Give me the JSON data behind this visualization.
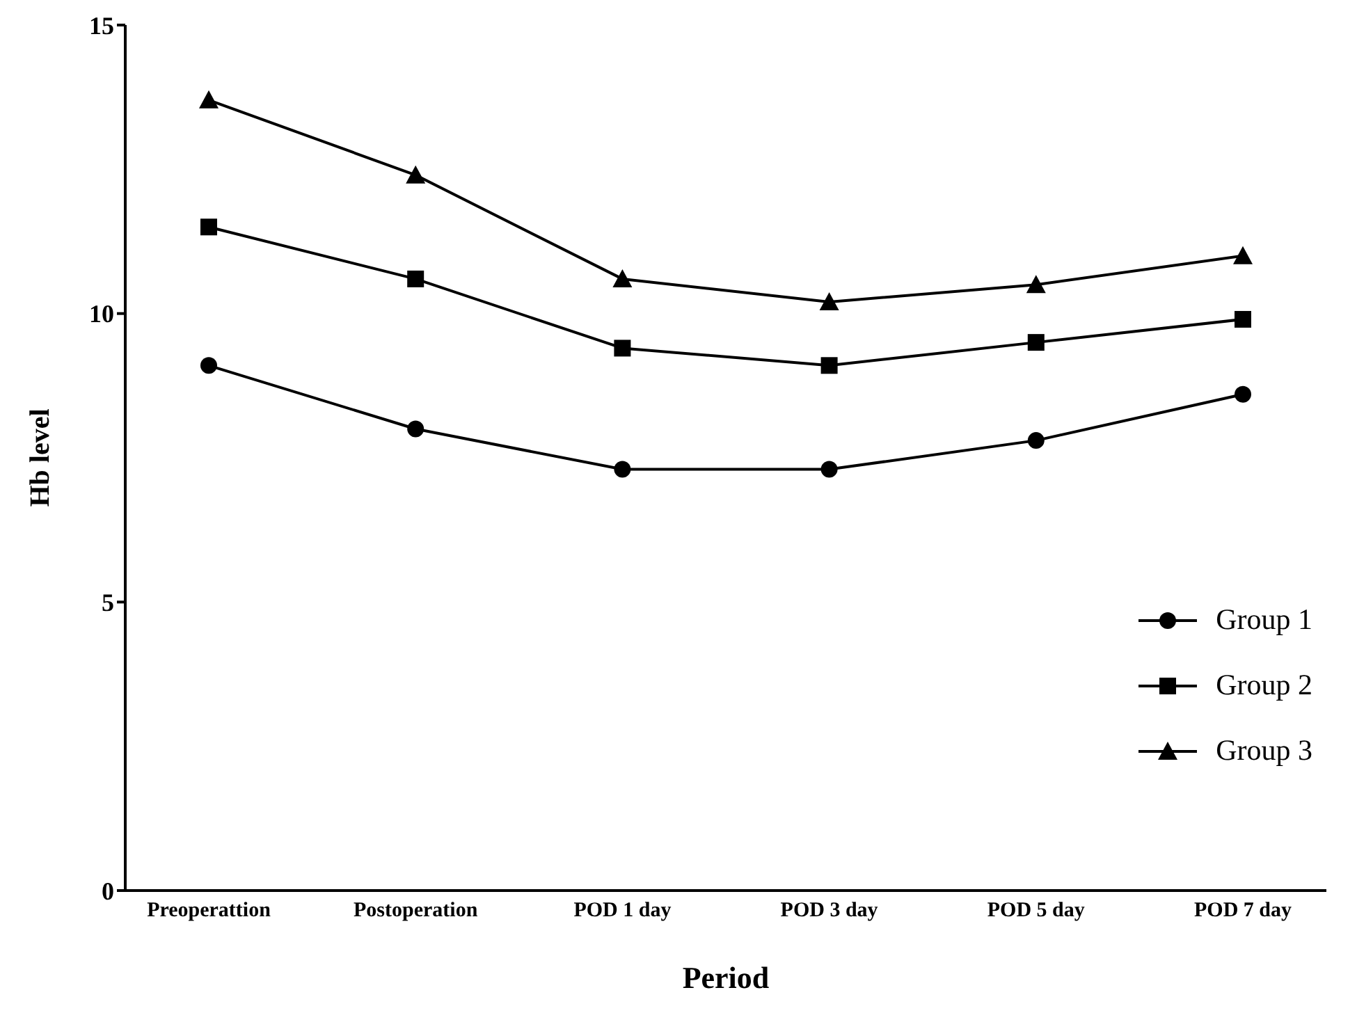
{
  "chart_data": {
    "type": "line",
    "xlabel": "Period",
    "ylabel": "Hb level",
    "categories": [
      "Preoperattion",
      "Postoperation",
      "POD 1 day",
      "POD 3 day",
      "POD 5 day",
      "POD 7 day"
    ],
    "series": [
      {
        "name": "Group 1",
        "color": "#000000",
        "marker": "circle",
        "values": [
          9.1,
          8.0,
          7.3,
          7.3,
          7.8,
          8.6
        ]
      },
      {
        "name": "Group 2",
        "color": "#000000",
        "marker": "square",
        "values": [
          11.5,
          10.6,
          9.4,
          9.1,
          9.5,
          9.9
        ]
      },
      {
        "name": "Group 3",
        "color": "#000000",
        "marker": "triangle",
        "values": [
          13.7,
          12.4,
          10.6,
          10.2,
          10.5,
          11.0
        ]
      }
    ],
    "ylim": [
      0,
      15
    ],
    "yticks": [
      0,
      5,
      10,
      15
    ],
    "grid": false,
    "legend": "bottom right",
    "line_style": "solid"
  }
}
